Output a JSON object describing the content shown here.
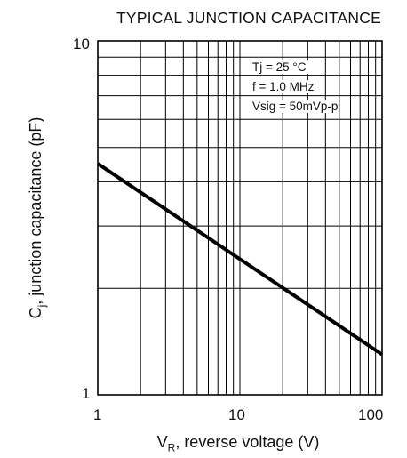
{
  "chart_data": {
    "type": "line",
    "title": "TYPICAL JUNCTION CAPACITANCE",
    "xlabel_main": "V",
    "xlabel_sub": "R",
    "xlabel_rest": ", reverse voltage (V)",
    "ylabel_main": "C",
    "ylabel_sub": "j",
    "ylabel_rest": ", junction capacitance (pF)",
    "x_scale": "log",
    "y_scale": "log",
    "xlim": [
      1,
      100
    ],
    "ylim": [
      1,
      10
    ],
    "x_ticks": [
      "1",
      "10",
      "100"
    ],
    "y_ticks": [
      "10",
      "1"
    ],
    "grid": true,
    "annotations": [
      "Tj = 25 °C",
      "f = 1.0 MHz",
      "Vsig = 50mVp-p"
    ],
    "series": [
      {
        "x": [
          1,
          100
        ],
        "y": [
          4.5,
          1.3
        ]
      }
    ]
  },
  "colors": {
    "line": "#000000",
    "grid": "#000000"
  }
}
